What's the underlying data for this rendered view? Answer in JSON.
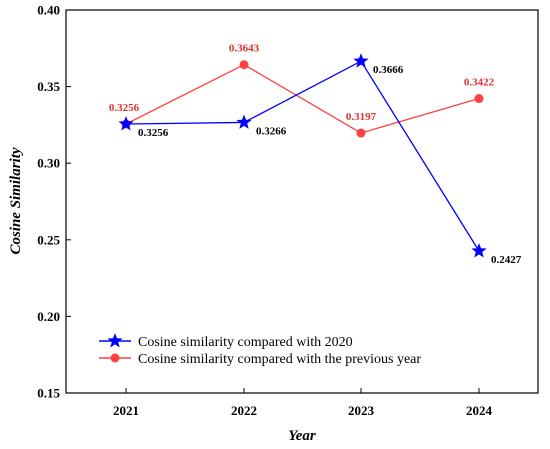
{
  "chart_data": {
    "type": "line",
    "x": [
      "2021",
      "2022",
      "2023",
      "2024"
    ],
    "xlabel": "Year",
    "ylabel": "Cosine Similarity",
    "ylim": [
      0.15,
      0.4
    ],
    "yticks": [
      "0.15",
      "0.20",
      "0.25",
      "0.30",
      "0.35",
      "0.40"
    ],
    "grid": false,
    "legend_position": "lower-left",
    "series": [
      {
        "name": "Cosine similarity compared with 2020",
        "color": "#0000ff",
        "marker": "star",
        "values": [
          0.3256,
          0.3266,
          0.3666,
          0.2427
        ],
        "labels": [
          "0.3256",
          "0.3266",
          "0.3666",
          "0.2427"
        ],
        "label_color": "#000000"
      },
      {
        "name": "Cosine similarity compared with the previous year",
        "color": "#ff4040",
        "marker": "circle",
        "values": [
          0.3256,
          0.3643,
          0.3197,
          0.3422
        ],
        "labels": [
          "0.3256",
          "0.3643",
          "0.3197",
          "0.3422"
        ],
        "label_color": "#e03030"
      }
    ]
  }
}
